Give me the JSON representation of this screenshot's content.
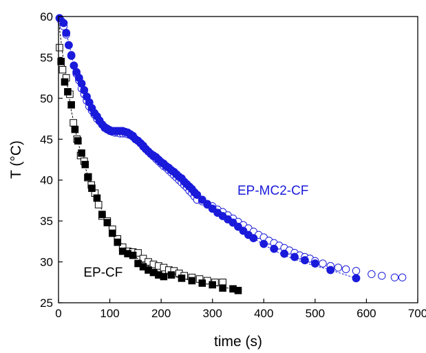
{
  "chart_data": {
    "type": "scatter",
    "title": "",
    "xlabel": "time (s)",
    "ylabel": "T (°C)",
    "xlim": [
      0,
      700
    ],
    "ylim": [
      25,
      60
    ],
    "xticks": [
      0,
      100,
      200,
      300,
      400,
      500,
      600,
      700
    ],
    "yticks": [
      25,
      30,
      35,
      40,
      45,
      50,
      55,
      60
    ],
    "grid": false,
    "colors": {
      "ep_mc2_cf": "#1a1adb",
      "ep_cf": "#000000"
    },
    "annotations": [
      {
        "text": "EP-MC2-CF",
        "series": "EP-MC2-CF"
      },
      {
        "text": "EP-CF",
        "series": "EP-CF"
      }
    ],
    "series": [
      {
        "name": "EP-MC2-CF",
        "group": "ep_mc2_cf",
        "marker": "circle-open",
        "x": [
          5,
          10,
          15,
          20,
          25,
          30,
          35,
          40,
          45,
          50,
          55,
          60,
          65,
          70,
          75,
          80,
          85,
          90,
          95,
          100,
          105,
          110,
          115,
          120,
          125,
          130,
          135,
          140,
          145,
          150,
          155,
          160,
          165,
          170,
          175,
          180,
          185,
          190,
          195,
          200,
          205,
          210,
          215,
          220,
          225,
          230,
          235,
          240,
          245,
          250,
          255,
          260,
          265,
          270,
          280,
          290,
          300,
          310,
          320,
          330,
          340,
          350,
          360,
          370,
          380,
          390,
          400,
          410,
          420,
          430,
          440,
          450,
          460,
          470,
          480,
          490,
          500,
          515,
          530,
          545,
          560,
          580,
          610,
          630,
          655,
          670
        ],
        "y": [
          59.5,
          58.8,
          57.8,
          56.5,
          55.3,
          54.0,
          53.0,
          52.2,
          51.2,
          50.5,
          49.7,
          49.0,
          48.5,
          48.0,
          47.5,
          47.3,
          46.8,
          46.5,
          46.3,
          46.0,
          45.9,
          45.8,
          45.8,
          45.7,
          45.7,
          45.7,
          45.6,
          45.5,
          45.3,
          45.0,
          44.8,
          44.5,
          44.1,
          43.8,
          43.5,
          43.2,
          42.9,
          42.6,
          42.3,
          42.0,
          41.7,
          41.5,
          41.2,
          40.9,
          40.6,
          40.3,
          40.0,
          39.7,
          39.4,
          39.1,
          38.7,
          38.4,
          38.0,
          37.6,
          37.4,
          37.1,
          36.8,
          36.4,
          36.1,
          35.7,
          35.3,
          34.9,
          34.5,
          34.1,
          33.7,
          33.3,
          33.0,
          32.6,
          32.3,
          32.0,
          31.7,
          31.4,
          31.1,
          30.8,
          30.6,
          30.4,
          30.1,
          29.8,
          29.5,
          29.3,
          29.1,
          28.9,
          28.5,
          28.3,
          28.1,
          28.1
        ]
      },
      {
        "name": "EP-MC2-CF",
        "group": "ep_mc2_cf",
        "marker": "circle-filled",
        "x": [
          2,
          10,
          15,
          20,
          25,
          30,
          35,
          40,
          45,
          50,
          55,
          60,
          65,
          70,
          75,
          80,
          85,
          90,
          95,
          100,
          105,
          110,
          115,
          120,
          125,
          130,
          135,
          140,
          145,
          150,
          155,
          160,
          165,
          170,
          175,
          180,
          185,
          190,
          195,
          200,
          205,
          210,
          215,
          220,
          225,
          230,
          235,
          240,
          245,
          250,
          255,
          260,
          265,
          270,
          280,
          290,
          300,
          310,
          320,
          330,
          340,
          350,
          360,
          370,
          380,
          400,
          420,
          440,
          460,
          480,
          500,
          530,
          580
        ],
        "y": [
          59.8,
          59.2,
          58.0,
          56.5,
          55.2,
          54.0,
          53.2,
          52.5,
          51.8,
          51.0,
          50.2,
          49.5,
          48.8,
          48.2,
          47.8,
          47.2,
          46.8,
          46.4,
          46.2,
          46.1,
          46.0,
          46.0,
          46.0,
          46.0,
          46.0,
          45.9,
          45.8,
          45.6,
          45.4,
          45.0,
          44.8,
          44.5,
          44.2,
          43.8,
          43.5,
          43.2,
          43.0,
          42.8,
          42.5,
          42.2,
          42.0,
          41.7,
          41.5,
          41.2,
          41.0,
          40.7,
          40.4,
          40.2,
          39.8,
          39.5,
          39.2,
          38.9,
          38.5,
          38.2,
          37.6,
          37.0,
          36.5,
          36.0,
          35.6,
          35.2,
          34.8,
          34.3,
          33.8,
          33.3,
          32.9,
          32.2,
          31.6,
          31.0,
          30.6,
          30.2,
          29.8,
          29.0,
          28.0
        ]
      },
      {
        "name": "EP-CF",
        "group": "ep_cf",
        "marker": "square-open",
        "x": [
          2,
          8,
          15,
          22,
          29,
          36,
          43,
          50,
          57,
          64,
          71,
          78,
          85,
          95,
          105,
          115,
          125,
          135,
          145,
          155,
          165,
          175,
          185,
          195,
          205,
          215,
          225,
          235,
          245,
          260,
          275,
          290,
          305,
          320
        ],
        "y": [
          56.2,
          53.5,
          52.5,
          50.5,
          47.0,
          45.0,
          43.0,
          42.3,
          40.3,
          39.4,
          38.4,
          37.0,
          35.6,
          35.0,
          34.0,
          32.8,
          31.8,
          31.3,
          31.2,
          31.1,
          30.4,
          30.0,
          29.7,
          29.5,
          29.3,
          29.0,
          28.9,
          28.6,
          28.3,
          28.1,
          27.9,
          27.7,
          27.5,
          27.5
        ]
      },
      {
        "name": "EP-CF",
        "group": "ep_cf",
        "marker": "square-filled",
        "x": [
          5,
          12,
          18,
          25,
          32,
          38,
          45,
          52,
          58,
          65,
          75,
          85,
          95,
          105,
          115,
          125,
          135,
          145,
          155,
          165,
          175,
          185,
          195,
          205,
          220,
          240,
          260,
          280,
          300,
          320,
          340,
          350
        ],
        "y": [
          54.5,
          52.0,
          50.8,
          49.2,
          46.2,
          44.8,
          43.3,
          41.9,
          40.4,
          39.0,
          37.8,
          35.8,
          34.8,
          33.5,
          32.4,
          31.3,
          31.0,
          30.8,
          29.8,
          29.4,
          29.0,
          28.7,
          28.4,
          28.2,
          28.4,
          28.0,
          27.7,
          27.4,
          27.2,
          26.8,
          26.7,
          26.5
        ]
      }
    ],
    "fit_curves": [
      {
        "group": "ep_mc2_cf",
        "x": [
          0,
          10,
          20,
          30,
          40,
          50,
          60,
          70,
          80,
          90,
          100,
          110,
          120,
          130,
          140,
          150,
          160,
          170,
          180,
          190,
          200,
          210,
          220,
          230,
          240,
          250,
          260,
          270,
          280,
          300,
          320,
          340,
          360,
          380,
          400,
          420,
          440,
          460,
          480,
          500,
          520,
          540,
          560,
          580
        ],
        "y": [
          60.0,
          59.2,
          56.8,
          54.0,
          52.3,
          50.8,
          49.0,
          48.0,
          47.3,
          46.6,
          46.0,
          45.9,
          45.8,
          45.7,
          45.6,
          45.1,
          44.5,
          43.8,
          43.2,
          42.7,
          42.1,
          41.6,
          41.0,
          40.5,
          40.0,
          39.4,
          38.8,
          38.2,
          37.6,
          36.6,
          35.5,
          34.6,
          33.7,
          32.9,
          32.1,
          31.4,
          30.8,
          30.3,
          29.9,
          29.5,
          29.2,
          28.8,
          28.4,
          28.0
        ]
      },
      {
        "group": "ep_cf",
        "x": [
          0,
          5,
          10,
          15,
          20,
          25,
          30,
          35,
          40,
          45,
          50,
          55,
          60,
          65,
          70,
          80,
          90,
          100,
          110,
          120,
          130,
          140,
          150,
          160,
          170,
          180,
          190,
          200,
          220,
          240,
          260,
          280,
          300,
          320,
          340,
          350
        ],
        "y": [
          59.5,
          57.0,
          54.5,
          52.5,
          50.5,
          48.5,
          47.0,
          45.5,
          44.2,
          43.0,
          42.0,
          41.0,
          40.0,
          39.2,
          38.6,
          37.0,
          35.6,
          34.5,
          33.4,
          32.5,
          31.7,
          31.1,
          30.6,
          30.1,
          29.7,
          29.3,
          29.0,
          28.7,
          28.3,
          28.0,
          27.7,
          27.4,
          27.2,
          26.9,
          26.7,
          26.5
        ]
      }
    ]
  }
}
